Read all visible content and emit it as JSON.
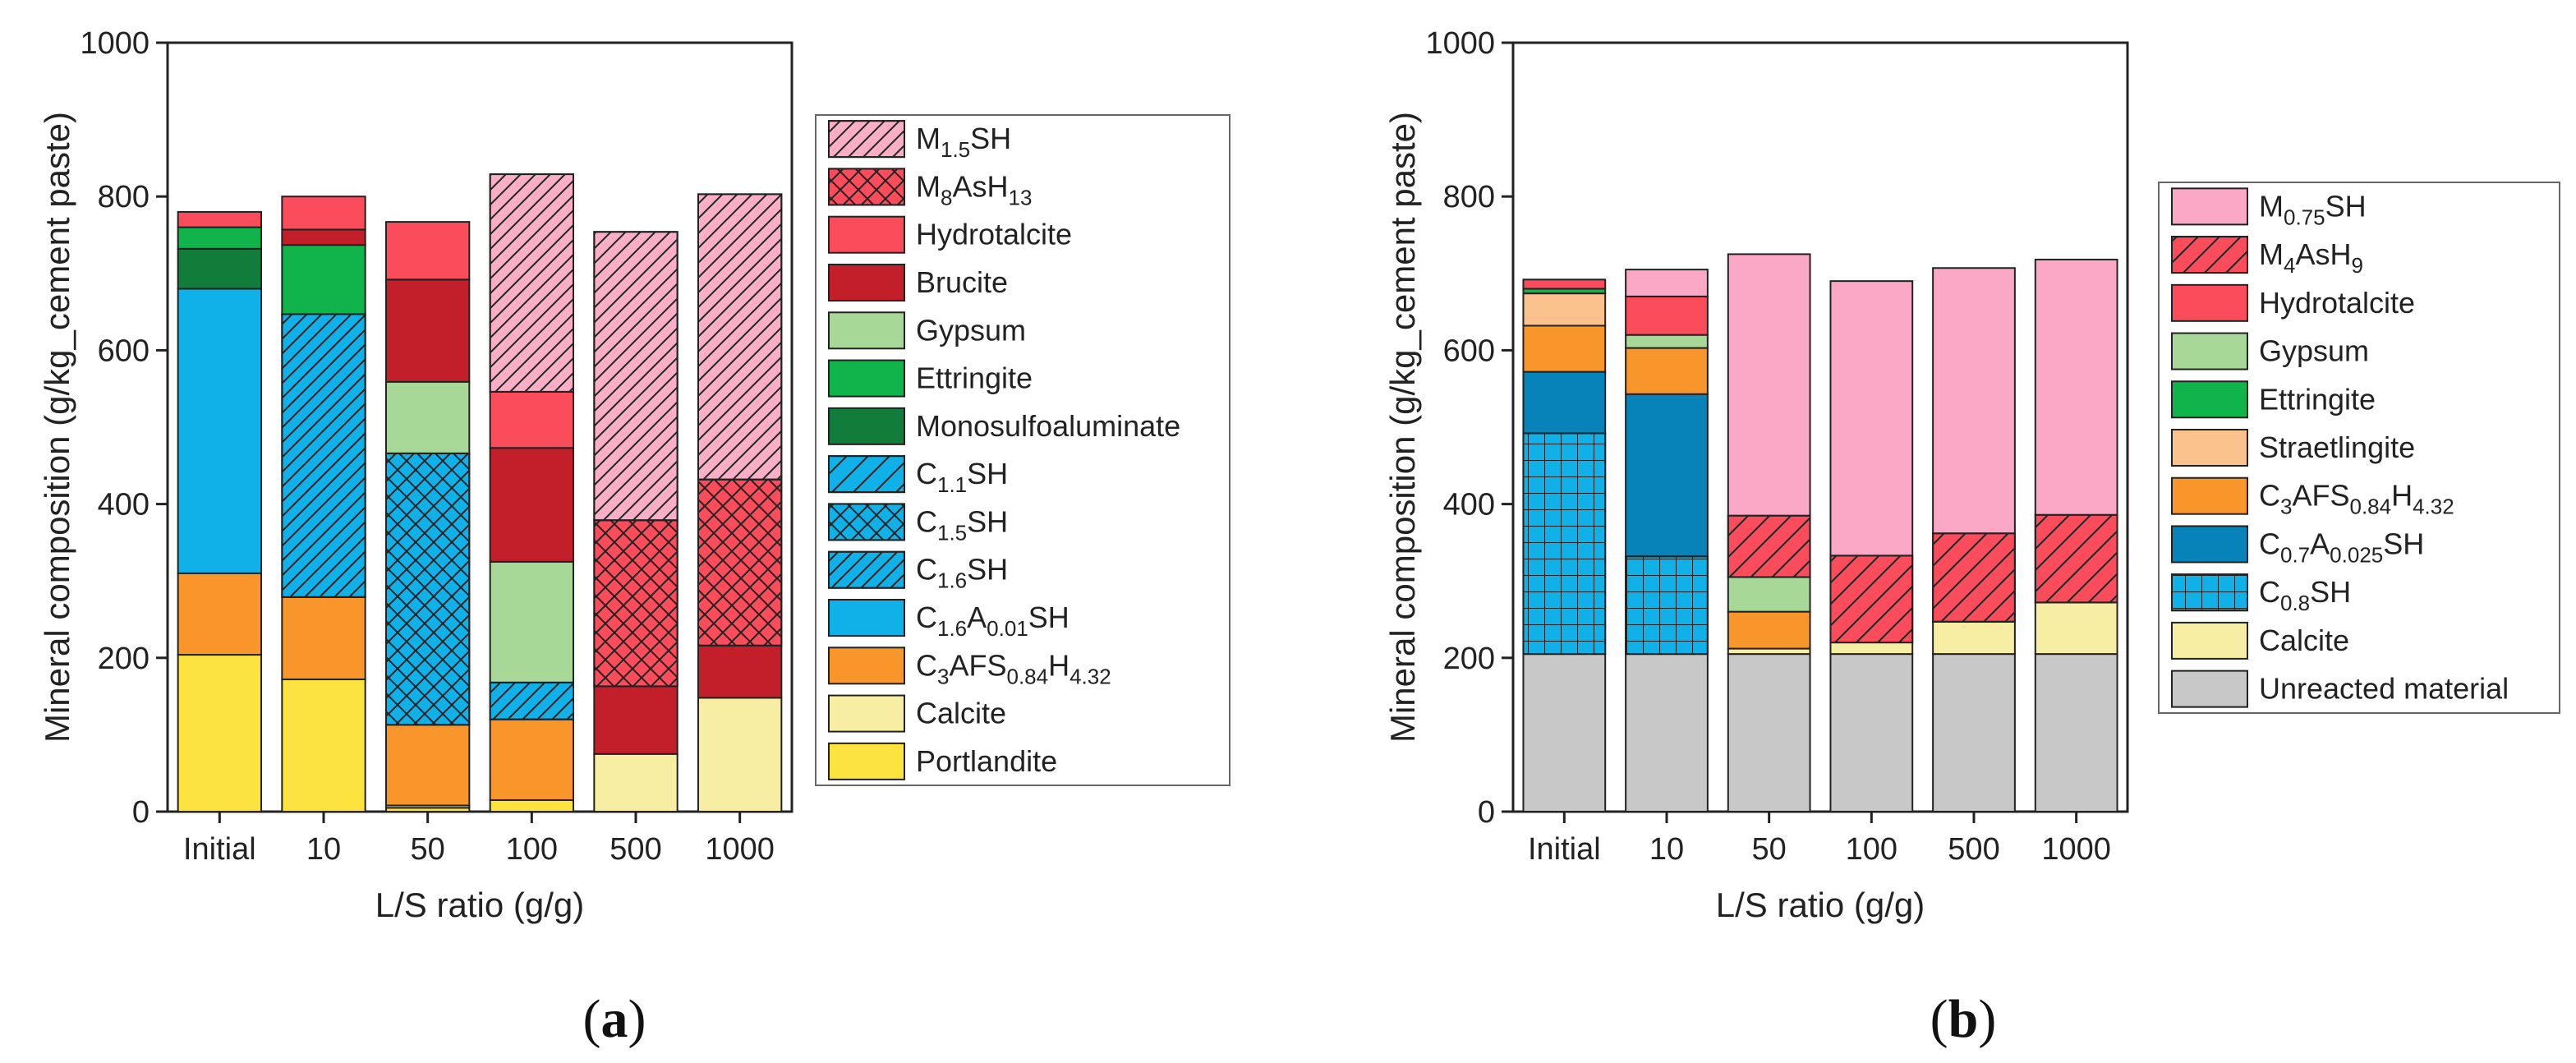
{
  "chart_data": [
    {
      "type": "bar",
      "stacked": true,
      "panel_label_open": "(",
      "panel_label_letter": "a",
      "panel_label_close": ")",
      "categories": [
        "Initial",
        "10",
        "50",
        "100",
        "500",
        "1000"
      ],
      "xlabel": "L/S ratio (g/g)",
      "ylabel": "Mineral composition (g/kg_cement paste)",
      "ylim": [
        0,
        1000
      ],
      "yticks": [
        0,
        200,
        400,
        600,
        800,
        1000
      ],
      "ytick_labels": [
        "0",
        "200",
        "400",
        "600",
        "800",
        "1000"
      ],
      "legend_position": "right",
      "series": [
        {
          "name": "Portlandite",
          "label": [
            {
              "t": "Portlandite"
            }
          ],
          "color": "#fde33f",
          "pattern": "none",
          "values": [
            204,
            172,
            5,
            15,
            0,
            0
          ]
        },
        {
          "name": "Calcite",
          "label": [
            {
              "t": "Calcite"
            }
          ],
          "color": "#f7eda3",
          "pattern": "none",
          "values": [
            0,
            0,
            3,
            0,
            75,
            148
          ]
        },
        {
          "name": "C3AFS0.84H4.32",
          "label": [
            {
              "t": "C"
            },
            {
              "t": "3",
              "s": "sub"
            },
            {
              "t": "AFS"
            },
            {
              "t": "0.84",
              "s": "sub"
            },
            {
              "t": "H"
            },
            {
              "t": "4.32",
              "s": "sub"
            }
          ],
          "color": "#f9962b",
          "pattern": "none",
          "values": [
            106,
            107,
            105,
            105,
            0,
            0
          ]
        },
        {
          "name": "C1.6A0.01SH",
          "label": [
            {
              "t": "C"
            },
            {
              "t": "1.6",
              "s": "sub"
            },
            {
              "t": "A"
            },
            {
              "t": "0.01",
              "s": "sub"
            },
            {
              "t": "SH"
            }
          ],
          "color": "#10b1e9",
          "pattern": "none",
          "values": [
            370,
            0,
            0,
            0,
            0,
            0
          ]
        },
        {
          "name": "C1.6SH",
          "label": [
            {
              "t": "C"
            },
            {
              "t": "1.6",
              "s": "sub"
            },
            {
              "t": "SH"
            }
          ],
          "color": "#10b1e9",
          "pattern": "diag",
          "values": [
            0,
            368,
            0,
            48,
            0,
            0
          ]
        },
        {
          "name": "C1.5SH",
          "label": [
            {
              "t": "C"
            },
            {
              "t": "1.5",
              "s": "sub"
            },
            {
              "t": "SH"
            }
          ],
          "color": "#10b1e9",
          "pattern": "cross",
          "values": [
            0,
            0,
            353,
            0,
            0,
            0
          ]
        },
        {
          "name": "C1.1SH",
          "label": [
            {
              "t": "C"
            },
            {
              "t": "1.1",
              "s": "sub"
            },
            {
              "t": "SH"
            }
          ],
          "color": "#10b1e9",
          "pattern": "diagsparse",
          "values": [
            0,
            0,
            0,
            0,
            0,
            0
          ]
        },
        {
          "name": "Monosulfoaluminate",
          "label": [
            {
              "t": "Monosulfoaluminate"
            }
          ],
          "color": "#127d3b",
          "pattern": "none",
          "values": [
            52,
            0,
            0,
            0,
            0,
            0
          ]
        },
        {
          "name": "Ettringite",
          "label": [
            {
              "t": "Ettringite"
            }
          ],
          "color": "#10b44b",
          "pattern": "none",
          "values": [
            28,
            90,
            0,
            0,
            0,
            0
          ]
        },
        {
          "name": "Gypsum",
          "label": [
            {
              "t": "Gypsum"
            }
          ],
          "color": "#a8d898",
          "pattern": "none",
          "values": [
            0,
            0,
            93,
            157,
            0,
            0
          ]
        },
        {
          "name": "Brucite",
          "label": [
            {
              "t": "Brucite"
            }
          ],
          "color": "#c21f2a",
          "pattern": "none",
          "values": [
            0,
            20,
            133,
            148,
            88,
            68
          ]
        },
        {
          "name": "Hydrotalcite",
          "label": [
            {
              "t": "Hydrotalcite"
            }
          ],
          "color": "#fa4c5b",
          "pattern": "none",
          "values": [
            20,
            43,
            75,
            73,
            0,
            0
          ]
        },
        {
          "name": "M8AsH13",
          "label": [
            {
              "t": "M"
            },
            {
              "t": "8",
              "s": "sub"
            },
            {
              "t": "AsH"
            },
            {
              "t": "13",
              "s": "sub"
            }
          ],
          "color": "#fa4c5b",
          "pattern": "cross",
          "values": [
            0,
            0,
            0,
            0,
            216,
            216
          ]
        },
        {
          "name": "M1.5SH",
          "label": [
            {
              "t": "M"
            },
            {
              "t": "1.5",
              "s": "sub"
            },
            {
              "t": "SH"
            }
          ],
          "color": "#fbaec6",
          "pattern": "diag",
          "values": [
            0,
            0,
            0,
            283,
            375,
            371
          ]
        }
      ]
    },
    {
      "type": "bar",
      "stacked": true,
      "panel_label_open": "(",
      "panel_label_letter": "b",
      "panel_label_close": ")",
      "categories": [
        "Initial",
        "10",
        "50",
        "100",
        "500",
        "1000"
      ],
      "xlabel": "L/S ratio (g/g)",
      "ylabel": "Mineral composition (g/kg_cement paste)",
      "ylim": [
        0,
        1000
      ],
      "yticks": [
        0,
        200,
        400,
        600,
        800,
        1000
      ],
      "ytick_labels": [
        "0",
        "200",
        "400",
        "600",
        "800",
        "1000"
      ],
      "legend_position": "right",
      "series": [
        {
          "name": "Unreacted material",
          "label": [
            {
              "t": "Unreacted material"
            }
          ],
          "color": "#c8c8c8",
          "pattern": "none",
          "values": [
            205,
            205,
            205,
            205,
            205,
            205
          ]
        },
        {
          "name": "Calcite",
          "label": [
            {
              "t": "Calcite"
            }
          ],
          "color": "#f7eda3",
          "pattern": "none",
          "values": [
            0,
            0,
            7,
            15,
            42,
            67
          ]
        },
        {
          "name": "C0.8SH",
          "label": [
            {
              "t": "C"
            },
            {
              "t": "0.8",
              "s": "sub"
            },
            {
              "t": "SH"
            }
          ],
          "color": "#10b1e9",
          "pattern": "grid",
          "values": [
            287,
            127,
            0,
            0,
            0,
            0
          ]
        },
        {
          "name": "C0.7A0.025SH",
          "label": [
            {
              "t": "C"
            },
            {
              "t": "0.7",
              "s": "sub"
            },
            {
              "t": "A"
            },
            {
              "t": "0.025",
              "s": "sub"
            },
            {
              "t": "SH"
            }
          ],
          "color": "#0783b9",
          "pattern": "none",
          "values": [
            80,
            211,
            0,
            0,
            0,
            0
          ]
        },
        {
          "name": "C3AFS0.84H4.32",
          "label": [
            {
              "t": "C"
            },
            {
              "t": "3",
              "s": "sub"
            },
            {
              "t": "AFS"
            },
            {
              "t": "0.84",
              "s": "sub"
            },
            {
              "t": "H"
            },
            {
              "t": "4.32",
              "s": "sub"
            }
          ],
          "color": "#f9962b",
          "pattern": "none",
          "values": [
            60,
            60,
            48,
            0,
            0,
            0
          ]
        },
        {
          "name": "Straetlingite",
          "label": [
            {
              "t": "Straetlingite"
            }
          ],
          "color": "#fcc28d",
          "pattern": "none",
          "values": [
            42,
            0,
            0,
            0,
            0,
            0
          ]
        },
        {
          "name": "Ettringite",
          "label": [
            {
              "t": "Ettringite"
            }
          ],
          "color": "#10b44b",
          "pattern": "none",
          "values": [
            6,
            0,
            0,
            0,
            0,
            0
          ]
        },
        {
          "name": "Gypsum",
          "label": [
            {
              "t": "Gypsum"
            }
          ],
          "color": "#a8d898",
          "pattern": "none",
          "values": [
            0,
            17,
            45,
            0,
            0,
            0
          ]
        },
        {
          "name": "Hydrotalcite",
          "label": [
            {
              "t": "Hydrotalcite"
            }
          ],
          "color": "#fa4c5b",
          "pattern": "none",
          "values": [
            12,
            50,
            0,
            0,
            0,
            0
          ]
        },
        {
          "name": "M4AsH9",
          "label": [
            {
              "t": "M"
            },
            {
              "t": "4",
              "s": "sub"
            },
            {
              "t": "AsH"
            },
            {
              "t": "9",
              "s": "sub"
            }
          ],
          "color": "#fa4c5b",
          "pattern": "diagsparse",
          "values": [
            0,
            0,
            80,
            113,
            115,
            114
          ]
        },
        {
          "name": "M0.75SH",
          "label": [
            {
              "t": "M"
            },
            {
              "t": "0.75",
              "s": "sub"
            },
            {
              "t": "SH"
            }
          ],
          "color": "#fba8c7",
          "pattern": "none",
          "values": [
            0,
            35,
            340,
            357,
            345,
            332
          ]
        }
      ]
    }
  ]
}
